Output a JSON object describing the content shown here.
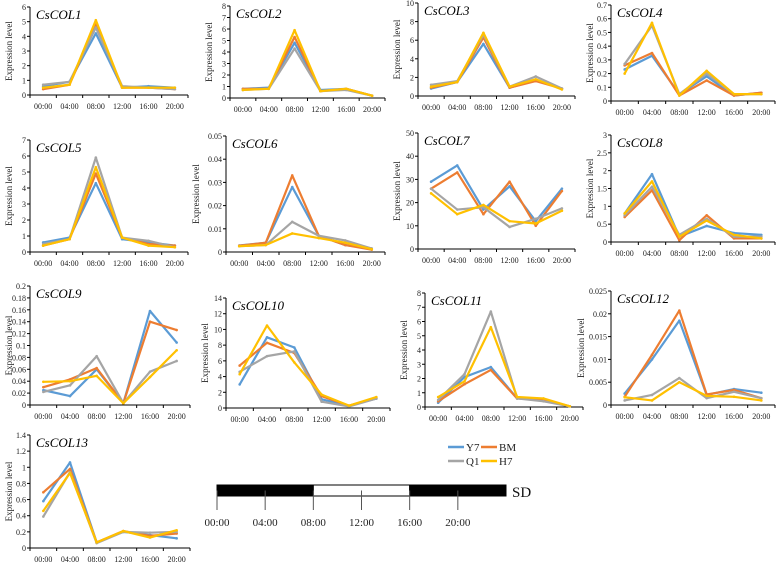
{
  "chart_data": {
    "type": "line",
    "ylabel": "Expression level",
    "categories": [
      "00:00",
      "04:00",
      "08:00",
      "12:00",
      "16:00",
      "20:00"
    ],
    "series_names": [
      "Y7",
      "BM",
      "Q1",
      "H7"
    ],
    "colors": {
      "Y7": "#5b9bd5",
      "BM": "#ed7d31",
      "Q1": "#a5a5a5",
      "H7": "#ffc000"
    },
    "legend": {
      "placement": "bottom-center",
      "entries": [
        "Y7",
        "BM",
        "Q1",
        "H7"
      ]
    },
    "panels": [
      {
        "title": "CsCOL1",
        "ylim": [
          0,
          6
        ],
        "yticks": [
          "0",
          "1",
          "2",
          "3",
          "4",
          "5",
          "6"
        ],
        "series": [
          {
            "name": "Y7",
            "values": [
              0.6,
              0.9,
              4.2,
              0.5,
              0.6,
              0.5
            ]
          },
          {
            "name": "BM",
            "values": [
              0.4,
              0.7,
              4.8,
              0.5,
              0.5,
              0.4
            ]
          },
          {
            "name": "Q1",
            "values": [
              0.7,
              0.9,
              4.6,
              0.6,
              0.5,
              0.4
            ]
          },
          {
            "name": "H7",
            "values": [
              0.5,
              0.7,
              5.1,
              0.5,
              0.5,
              0.5
            ]
          }
        ]
      },
      {
        "title": "CsCOL2",
        "ylim": [
          0,
          8
        ],
        "yticks": [
          "0",
          "1",
          "2",
          "3",
          "4",
          "5",
          "6",
          "7",
          "8"
        ],
        "series": [
          {
            "name": "Y7",
            "values": [
              0.8,
              0.9,
              4.8,
              0.7,
              0.8,
              0.2
            ]
          },
          {
            "name": "BM",
            "values": [
              0.8,
              0.8,
              5.3,
              0.6,
              0.8,
              0.2
            ]
          },
          {
            "name": "Q1",
            "values": [
              0.7,
              0.8,
              4.3,
              0.6,
              0.7,
              0.2
            ]
          },
          {
            "name": "H7",
            "values": [
              0.7,
              0.8,
              5.9,
              0.6,
              0.8,
              0.2
            ]
          }
        ]
      },
      {
        "title": "CsCOL3",
        "ylim": [
          0,
          10
        ],
        "yticks": [
          "0",
          "2",
          "4",
          "6",
          "8",
          "10"
        ],
        "series": [
          {
            "name": "Y7",
            "values": [
              0.8,
              1.5,
              5.6,
              0.9,
              1.7,
              0.8
            ]
          },
          {
            "name": "BM",
            "values": [
              0.9,
              1.5,
              6.3,
              0.9,
              1.6,
              0.8
            ]
          },
          {
            "name": "Q1",
            "values": [
              1.2,
              1.6,
              6.6,
              1.0,
              2.1,
              0.8
            ]
          },
          {
            "name": "H7",
            "values": [
              1.0,
              1.5,
              6.8,
              1.0,
              1.8,
              0.7
            ]
          }
        ]
      },
      {
        "title": "CsCOL4",
        "ylim": [
          0,
          0.7
        ],
        "yticks": [
          "0",
          "0.1",
          "0.2",
          "0.3",
          "0.4",
          "0.5",
          "0.6",
          "0.7"
        ],
        "series": [
          {
            "name": "Y7",
            "values": [
              0.23,
              0.33,
              0.05,
              0.18,
              0.04,
              0.06
            ]
          },
          {
            "name": "BM",
            "values": [
              0.26,
              0.35,
              0.04,
              0.15,
              0.04,
              0.06
            ]
          },
          {
            "name": "Q1",
            "values": [
              0.27,
              0.55,
              0.05,
              0.2,
              0.05,
              0.05
            ]
          },
          {
            "name": "H7",
            "values": [
              0.2,
              0.57,
              0.04,
              0.22,
              0.05,
              0.05
            ]
          }
        ]
      },
      {
        "title": "CsCOL5",
        "ylim": [
          0,
          7
        ],
        "yticks": [
          "0",
          "1",
          "2",
          "3",
          "4",
          "5",
          "6",
          "7"
        ],
        "series": [
          {
            "name": "Y7",
            "values": [
              0.6,
              0.9,
              4.3,
              0.8,
              0.6,
              0.4
            ]
          },
          {
            "name": "BM",
            "values": [
              0.4,
              0.8,
              4.9,
              0.9,
              0.5,
              0.4
            ]
          },
          {
            "name": "Q1",
            "values": [
              0.5,
              0.8,
              5.9,
              0.9,
              0.7,
              0.3
            ]
          },
          {
            "name": "H7",
            "values": [
              0.4,
              0.8,
              5.3,
              0.9,
              0.4,
              0.3
            ]
          }
        ]
      },
      {
        "title": "CsCOL6",
        "ylim": [
          0,
          0.05
        ],
        "yticks": [
          "0",
          "0.01",
          "0.02",
          "0.03",
          "0.04",
          "0.05"
        ],
        "series": [
          {
            "name": "Y7",
            "values": [
              0.0028,
              0.004,
              0.028,
              0.007,
              0.003,
              0.0015
            ]
          },
          {
            "name": "BM",
            "values": [
              0.0027,
              0.004,
              0.033,
              0.007,
              0.003,
              0.001
            ]
          },
          {
            "name": "Q1",
            "values": [
              0.0025,
              0.003,
              0.013,
              0.007,
              0.005,
              0.0015
            ]
          },
          {
            "name": "H7",
            "values": [
              0.0025,
              0.003,
              0.008,
              0.006,
              0.004,
              0.0012
            ]
          }
        ]
      },
      {
        "title": "CsCOL7",
        "ylim": [
          0,
          50
        ],
        "yticks": [
          "0",
          "10",
          "20",
          "30",
          "40",
          "50"
        ],
        "series": [
          {
            "name": "Y7",
            "values": [
              29,
              36,
              17,
              27,
              12,
              26
            ]
          },
          {
            "name": "BM",
            "values": [
              26,
              33,
              15,
              29,
              10,
              25
            ]
          },
          {
            "name": "Q1",
            "values": [
              26,
              17,
              18,
              9.5,
              13,
              17.5
            ]
          },
          {
            "name": "H7",
            "values": [
              24,
              15,
              19,
              12,
              11,
              16.5
            ]
          }
        ]
      },
      {
        "title": "CsCOL8",
        "ylim": [
          0,
          3
        ],
        "yticks": [
          "0",
          "0.5",
          "1",
          "1.5",
          "2",
          "2.5",
          "3"
        ],
        "series": [
          {
            "name": "Y7",
            "values": [
              0.8,
              1.9,
              0.15,
              0.45,
              0.25,
              0.2
            ]
          },
          {
            "name": "BM",
            "values": [
              0.7,
              1.45,
              0.05,
              0.75,
              0.1,
              0.1
            ]
          },
          {
            "name": "Q1",
            "values": [
              0.75,
              1.55,
              0.2,
              0.65,
              0.15,
              0.15
            ]
          },
          {
            "name": "H7",
            "values": [
              0.8,
              1.7,
              0.15,
              0.6,
              0.2,
              0.1
            ]
          }
        ]
      },
      {
        "title": "CsCOL9",
        "ylim": [
          0,
          0.2
        ],
        "yticks": [
          "0",
          "0.02",
          "0.04",
          "0.06",
          "0.08",
          "0.1",
          "0.12",
          "0.14",
          "0.16",
          "0.18",
          "0.2"
        ],
        "series": [
          {
            "name": "Y7",
            "values": [
              0.025,
              0.015,
              0.06,
              0.003,
              0.158,
              0.105
            ]
          },
          {
            "name": "BM",
            "values": [
              0.03,
              0.043,
              0.062,
              0.003,
              0.14,
              0.126
            ]
          },
          {
            "name": "Q1",
            "values": [
              0.022,
              0.033,
              0.082,
              0.003,
              0.056,
              0.074
            ]
          },
          {
            "name": "H7",
            "values": [
              0.039,
              0.04,
              0.049,
              0.003,
              0.047,
              0.092
            ]
          }
        ]
      },
      {
        "title": "CsCOL10",
        "ylim": [
          0,
          14
        ],
        "yticks": [
          "0",
          "2",
          "4",
          "6",
          "8",
          "10",
          "12",
          "14"
        ],
        "series": [
          {
            "name": "Y7",
            "values": [
              3,
              9,
              7.7,
              1.1,
              0.3,
              1.2
            ]
          },
          {
            "name": "BM",
            "values": [
              5.4,
              8.3,
              7,
              1.5,
              0.3,
              1.3
            ]
          },
          {
            "name": "Q1",
            "values": [
              4.6,
              6.6,
              7.2,
              0.8,
              0.2,
              1.2
            ]
          },
          {
            "name": "H7",
            "values": [
              4.3,
              10.5,
              5.8,
              1.7,
              0.3,
              1.4
            ]
          }
        ]
      },
      {
        "title": "CsCOL11",
        "ylim": [
          0,
          8
        ],
        "yticks": [
          "0",
          "1",
          "2",
          "3",
          "4",
          "5",
          "6",
          "7",
          "8"
        ],
        "series": [
          {
            "name": "Y7",
            "values": [
              0.3,
              2.1,
              2.8,
              0.6,
              0.5,
              0.05
            ]
          },
          {
            "name": "BM",
            "values": [
              0.4,
              1.6,
              2.6,
              0.6,
              0.5,
              0.05
            ]
          },
          {
            "name": "Q1",
            "values": [
              0.5,
              2.3,
              6.7,
              0.6,
              0.4,
              0.05
            ]
          },
          {
            "name": "H7",
            "values": [
              0.7,
              1.8,
              5.6,
              0.7,
              0.6,
              0.05
            ]
          }
        ]
      },
      {
        "title": "CsCOL12",
        "ylim": [
          0,
          0.025
        ],
        "yticks": [
          "0",
          "0.005",
          "0.01",
          "0.015",
          "0.02",
          "0.025"
        ],
        "series": [
          {
            "name": "Y7",
            "values": [
              0.0025,
              0.01,
              0.0185,
              0.0022,
              0.0035,
              0.0027
            ]
          },
          {
            "name": "BM",
            "values": [
              0.0018,
              0.011,
              0.0207,
              0.0023,
              0.0033,
              0.0015
            ]
          },
          {
            "name": "Q1",
            "values": [
              0.001,
              0.0022,
              0.0059,
              0.0015,
              0.0029,
              0.0015
            ]
          },
          {
            "name": "H7",
            "values": [
              0.0017,
              0.001,
              0.005,
              0.002,
              0.0018,
              0.001
            ]
          }
        ]
      },
      {
        "title": "CsCOL13",
        "ylim": [
          0,
          1.4
        ],
        "yticks": [
          "0",
          "0.2",
          "0.4",
          "0.6",
          "0.8",
          "1",
          "1.2",
          "1.4"
        ],
        "series": [
          {
            "name": "Y7",
            "values": [
              0.58,
              1.06,
              0.07,
              0.2,
              0.16,
              0.12
            ]
          },
          {
            "name": "BM",
            "values": [
              0.69,
              0.98,
              0.07,
              0.21,
              0.15,
              0.18
            ]
          },
          {
            "name": "Q1",
            "values": [
              0.39,
              0.94,
              0.06,
              0.2,
              0.19,
              0.2
            ]
          },
          {
            "name": "H7",
            "values": [
              0.46,
              0.93,
              0.07,
              0.21,
              0.13,
              0.22
            ]
          }
        ]
      }
    ],
    "photoperiod": {
      "label": "SD",
      "ticks": [
        "00:00",
        "04:00",
        "08:00",
        "12:00",
        "16:00",
        "20:00"
      ],
      "segments": [
        {
          "from": 0,
          "to": 8,
          "state": "dark"
        },
        {
          "from": 8,
          "to": 16,
          "state": "light"
        },
        {
          "from": 16,
          "to": 24,
          "state": "dark"
        }
      ]
    }
  }
}
